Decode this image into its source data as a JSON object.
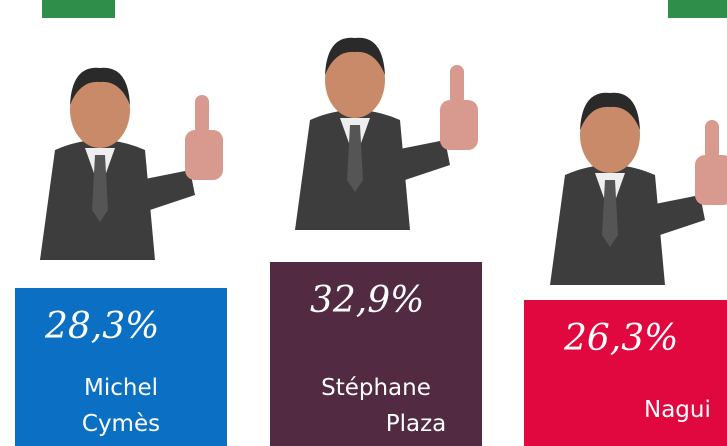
{
  "podiums": [
    {
      "percent": "28,3%",
      "name_lines": [
        "Michel",
        "Cymès"
      ],
      "color": "#0b70c3"
    },
    {
      "percent": "32,9%",
      "name_lines": [
        "Stéphane",
        "Plaza"
      ],
      "color": "#522a41"
    },
    {
      "percent": "26,3%",
      "name_lines": [
        "Nagui"
      ],
      "color": "#e0083f"
    }
  ]
}
